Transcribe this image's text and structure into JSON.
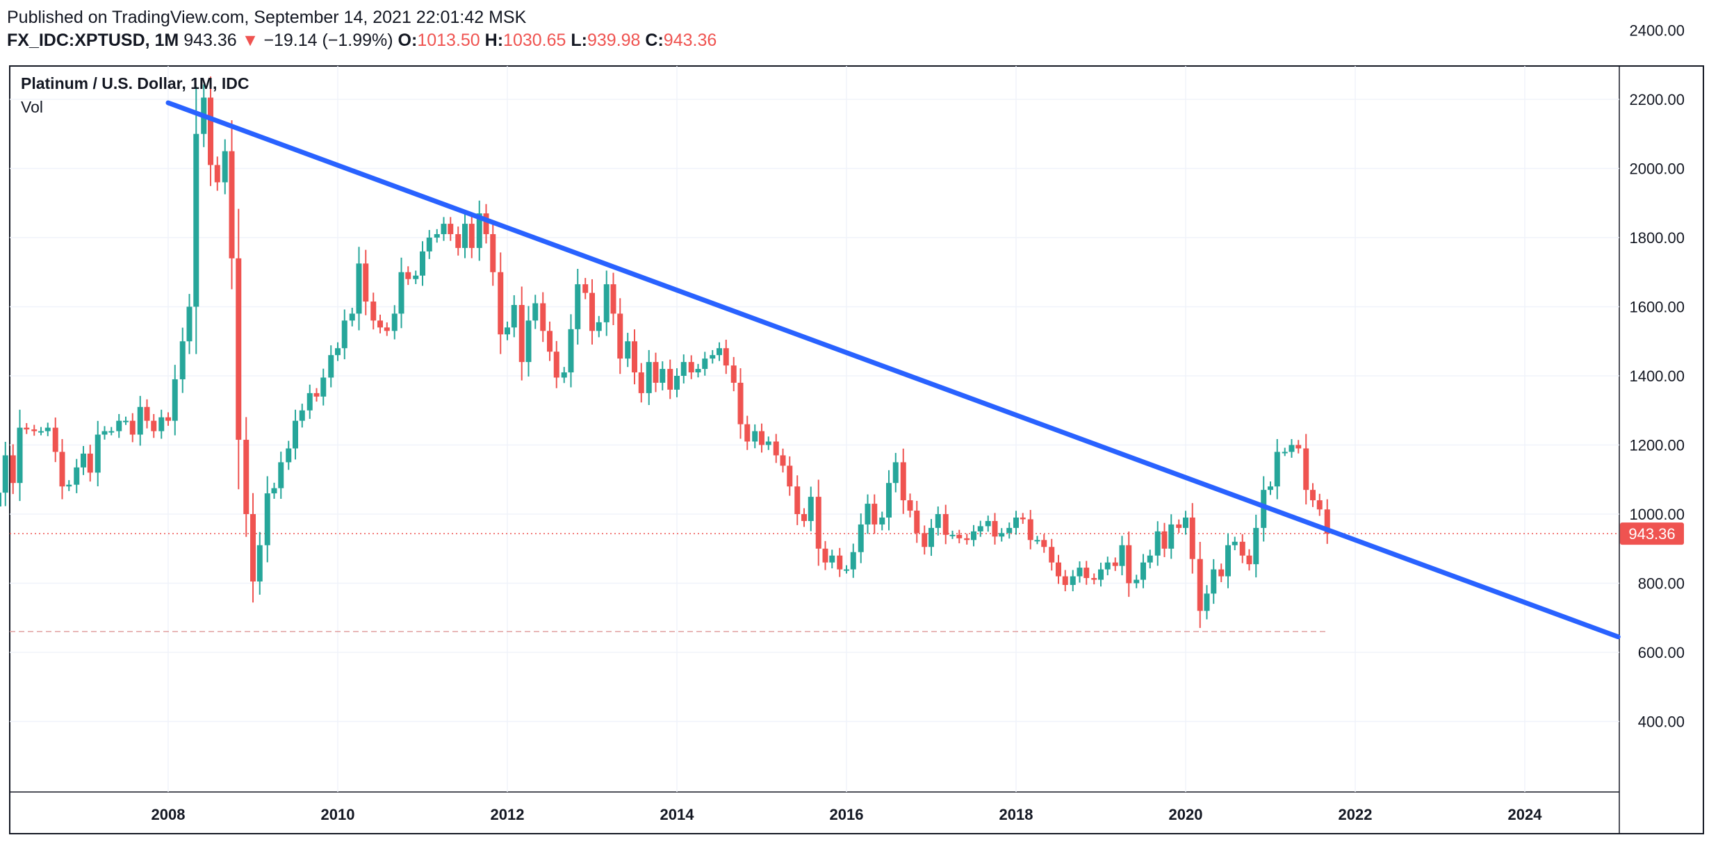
{
  "header": {
    "published": "Published on TradingView.com, September 14, 2021 22:01:42 MSK",
    "symbol": "FX_IDC:XPTUSD, 1M",
    "last": "943.36",
    "change_arrow": "▼",
    "change": "−19.14 (−1.99%)",
    "open_label": "O:",
    "open": "1013.50",
    "high_label": "H:",
    "high": "1030.65",
    "low_label": "L:",
    "low": "939.98",
    "close_label": "C:",
    "close": "943.36"
  },
  "chart_data": {
    "type": "candlestick",
    "title": "Platinum / U.S. Dollar, 1M, IDC",
    "volume_label": "Vol",
    "x_tick_labels": [
      "2008",
      "2010",
      "2012",
      "2014",
      "2016",
      "2018",
      "2020",
      "2022",
      "2024"
    ],
    "y_tick_labels": [
      "2400.00",
      "2200.00",
      "2000.00",
      "1800.00",
      "1600.00",
      "1400.00",
      "1200.00",
      "1000.00",
      "800.00",
      "600.00",
      "400.00"
    ],
    "xlim": [
      2006.0,
      2025.1
    ],
    "ylim": [
      388,
      2500
    ],
    "grid": true,
    "last_price": 943.36,
    "last_price_label": "943.36",
    "colors": {
      "up": "#26a69a",
      "down": "#ef5350",
      "trendline": "#2962ff",
      "price_line": "#ef5350",
      "text": "#131722",
      "grid": "#f0f3fa"
    },
    "reference_level": 660,
    "trendline": {
      "start": [
        2008.0,
        2190
      ],
      "end": [
        2025.1,
        645
      ]
    },
    "closes": [
      [
        2006.0,
        1062
      ],
      [
        2006.08,
        1170
      ],
      [
        2006.17,
        1090
      ],
      [
        2006.25,
        1250
      ],
      [
        2006.33,
        1245
      ],
      [
        2006.42,
        1240
      ],
      [
        2006.5,
        1240
      ],
      [
        2006.58,
        1250
      ],
      [
        2006.67,
        1180
      ],
      [
        2006.75,
        1080
      ],
      [
        2006.83,
        1085
      ],
      [
        2006.92,
        1135
      ],
      [
        2007.0,
        1175
      ],
      [
        2007.08,
        1120
      ],
      [
        2007.17,
        1230
      ],
      [
        2007.25,
        1240
      ],
      [
        2007.33,
        1240
      ],
      [
        2007.42,
        1270
      ],
      [
        2007.5,
        1270
      ],
      [
        2007.58,
        1230
      ],
      [
        2007.67,
        1310
      ],
      [
        2007.75,
        1270
      ],
      [
        2007.83,
        1240
      ],
      [
        2007.92,
        1280
      ],
      [
        2008.0,
        1270
      ],
      [
        2008.08,
        1390
      ],
      [
        2008.17,
        1500
      ],
      [
        2008.25,
        1600
      ],
      [
        2008.33,
        2100
      ],
      [
        2008.42,
        2205
      ],
      [
        2008.5,
        2010
      ],
      [
        2008.58,
        1960
      ],
      [
        2008.67,
        2050
      ],
      [
        2008.75,
        1740
      ],
      [
        2008.83,
        1215
      ],
      [
        2008.92,
        1000
      ],
      [
        2009.0,
        805
      ],
      [
        2009.08,
        910
      ],
      [
        2009.17,
        1060
      ],
      [
        2009.25,
        1075
      ],
      [
        2009.33,
        1150
      ],
      [
        2009.42,
        1190
      ],
      [
        2009.5,
        1270
      ],
      [
        2009.58,
        1300
      ],
      [
        2009.67,
        1350
      ],
      [
        2009.75,
        1340
      ],
      [
        2009.83,
        1395
      ],
      [
        2009.92,
        1460
      ],
      [
        2010.0,
        1480
      ],
      [
        2010.08,
        1560
      ],
      [
        2010.17,
        1580
      ],
      [
        2010.25,
        1725
      ],
      [
        2010.33,
        1615
      ],
      [
        2010.42,
        1560
      ],
      [
        2010.5,
        1540
      ],
      [
        2010.58,
        1530
      ],
      [
        2010.67,
        1580
      ],
      [
        2010.75,
        1700
      ],
      [
        2010.83,
        1680
      ],
      [
        2010.92,
        1690
      ],
      [
        2011.0,
        1760
      ],
      [
        2011.08,
        1800
      ],
      [
        2011.17,
        1810
      ],
      [
        2011.25,
        1840
      ],
      [
        2011.33,
        1810
      ],
      [
        2011.42,
        1770
      ],
      [
        2011.5,
        1840
      ],
      [
        2011.58,
        1770
      ],
      [
        2011.67,
        1870
      ],
      [
        2011.75,
        1810
      ],
      [
        2011.83,
        1700
      ],
      [
        2011.92,
        1520
      ],
      [
        2012.0,
        1540
      ],
      [
        2012.08,
        1605
      ],
      [
        2012.17,
        1440
      ],
      [
        2012.25,
        1560
      ],
      [
        2012.33,
        1610
      ],
      [
        2012.42,
        1530
      ],
      [
        2012.5,
        1470
      ],
      [
        2012.58,
        1395
      ],
      [
        2012.67,
        1410
      ],
      [
        2012.75,
        1535
      ],
      [
        2012.83,
        1665
      ],
      [
        2012.92,
        1640
      ],
      [
        2013.0,
        1530
      ],
      [
        2013.08,
        1555
      ],
      [
        2013.17,
        1665
      ],
      [
        2013.25,
        1580
      ],
      [
        2013.33,
        1450
      ],
      [
        2013.42,
        1500
      ],
      [
        2013.5,
        1410
      ],
      [
        2013.58,
        1350
      ],
      [
        2013.67,
        1440
      ],
      [
        2013.75,
        1380
      ],
      [
        2013.83,
        1420
      ],
      [
        2013.92,
        1360
      ],
      [
        2014.0,
        1400
      ],
      [
        2014.08,
        1440
      ],
      [
        2014.17,
        1410
      ],
      [
        2014.25,
        1420
      ],
      [
        2014.33,
        1450
      ],
      [
        2014.42,
        1460
      ],
      [
        2014.5,
        1480
      ],
      [
        2014.58,
        1430
      ],
      [
        2014.67,
        1380
      ],
      [
        2014.75,
        1260
      ],
      [
        2014.83,
        1210
      ],
      [
        2014.92,
        1240
      ],
      [
        2015.0,
        1200
      ],
      [
        2015.08,
        1210
      ],
      [
        2015.17,
        1170
      ],
      [
        2015.25,
        1140
      ],
      [
        2015.33,
        1080
      ],
      [
        2015.42,
        1000
      ],
      [
        2015.5,
        980
      ],
      [
        2015.58,
        1050
      ],
      [
        2015.67,
        900
      ],
      [
        2015.75,
        860
      ],
      [
        2015.83,
        880
      ],
      [
        2015.92,
        840
      ],
      [
        2016.0,
        840
      ],
      [
        2016.08,
        890
      ],
      [
        2016.17,
        970
      ],
      [
        2016.25,
        1030
      ],
      [
        2016.33,
        970
      ],
      [
        2016.42,
        990
      ],
      [
        2016.5,
        1090
      ],
      [
        2016.58,
        1150
      ],
      [
        2016.67,
        1040
      ],
      [
        2016.75,
        1010
      ],
      [
        2016.83,
        945
      ],
      [
        2016.92,
        905
      ],
      [
        2017.0,
        960
      ],
      [
        2017.08,
        1000
      ],
      [
        2017.17,
        940
      ],
      [
        2017.25,
        940
      ],
      [
        2017.33,
        930
      ],
      [
        2017.42,
        925
      ],
      [
        2017.5,
        950
      ],
      [
        2017.58,
        965
      ],
      [
        2017.67,
        980
      ],
      [
        2017.75,
        935
      ],
      [
        2017.83,
        945
      ],
      [
        2017.92,
        960
      ],
      [
        2018.0,
        990
      ],
      [
        2018.08,
        985
      ],
      [
        2018.17,
        925
      ],
      [
        2018.25,
        925
      ],
      [
        2018.33,
        905
      ],
      [
        2018.42,
        860
      ],
      [
        2018.5,
        820
      ],
      [
        2018.58,
        795
      ],
      [
        2018.67,
        820
      ],
      [
        2018.75,
        845
      ],
      [
        2018.83,
        815
      ],
      [
        2018.92,
        810
      ],
      [
        2019.0,
        840
      ],
      [
        2019.08,
        860
      ],
      [
        2019.17,
        850
      ],
      [
        2019.25,
        910
      ],
      [
        2019.33,
        800
      ],
      [
        2019.42,
        810
      ],
      [
        2019.5,
        860
      ],
      [
        2019.58,
        880
      ],
      [
        2019.67,
        950
      ],
      [
        2019.75,
        900
      ],
      [
        2019.83,
        970
      ],
      [
        2019.92,
        960
      ],
      [
        2020.0,
        990
      ],
      [
        2020.08,
        870
      ],
      [
        2020.17,
        720
      ],
      [
        2020.25,
        770
      ],
      [
        2020.33,
        840
      ],
      [
        2020.42,
        820
      ],
      [
        2020.5,
        910
      ],
      [
        2020.58,
        920
      ],
      [
        2020.67,
        880
      ],
      [
        2020.75,
        855
      ],
      [
        2020.83,
        960
      ],
      [
        2020.92,
        1070
      ],
      [
        2021.0,
        1080
      ],
      [
        2021.08,
        1180
      ],
      [
        2021.17,
        1180
      ],
      [
        2021.25,
        1200
      ],
      [
        2021.33,
        1190
      ],
      [
        2021.42,
        1070
      ],
      [
        2021.5,
        1040
      ],
      [
        2021.58,
        1013.5
      ],
      [
        2021.67,
        943.36
      ]
    ]
  }
}
